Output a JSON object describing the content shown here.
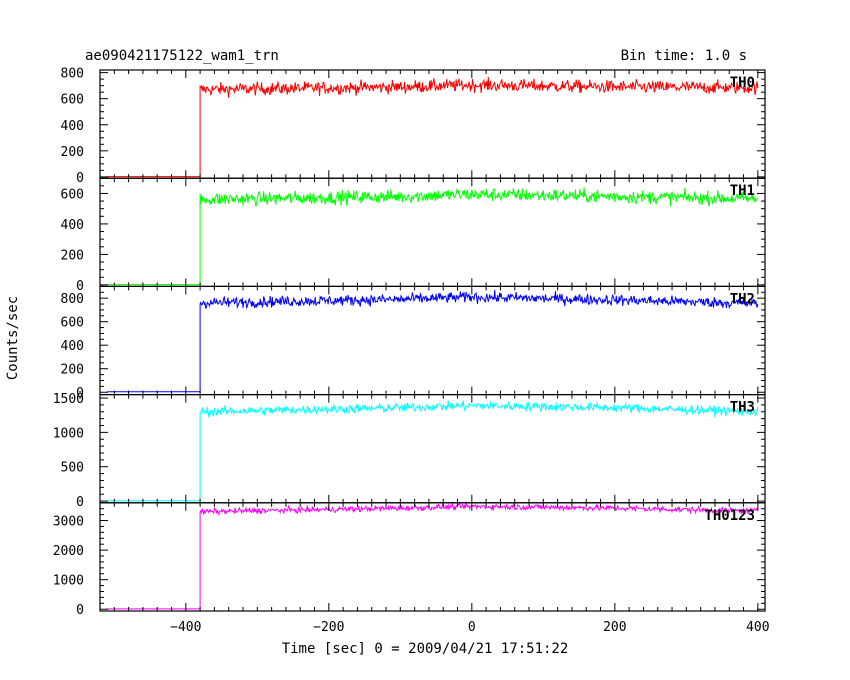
{
  "header": {
    "title": "ae090421175122_wam1_trn",
    "bin_time": "Bin time: 1.0 s"
  },
  "chart_data": {
    "type": "line",
    "title": "ae090421175122_wam1_trn",
    "xlabel": "Time [sec] 0 = 2009/04/21 17:51:22",
    "ylabel": "Counts/sec",
    "xlim": [
      -520,
      410
    ],
    "x_ticks": [
      -400,
      -200,
      0,
      200,
      400
    ],
    "x_tick_labels": [
      "−400",
      "−200",
      "0",
      "200",
      "400"
    ],
    "x_minor_step": 20,
    "step_time": -380,
    "panels": [
      {
        "name": "TH0",
        "color": "#ff0000",
        "ylim": [
          -10,
          820
        ],
        "y_ticks": [
          0,
          200,
          400,
          600,
          800
        ],
        "y_minor_step": 50,
        "pre_level": 2,
        "post_level": 690,
        "noise": 45,
        "trend": [
          [
            -380,
            670
          ],
          [
            -100,
            690
          ],
          [
            0,
            705
          ],
          [
            200,
            690
          ],
          [
            400,
            685
          ]
        ]
      },
      {
        "name": "TH1",
        "color": "#00ff00",
        "ylim": [
          -10,
          700
        ],
        "y_ticks": [
          0,
          200,
          400,
          600
        ],
        "y_minor_step": 50,
        "pre_level": 2,
        "post_level": 570,
        "noise": 40,
        "trend": [
          [
            -380,
            560
          ],
          [
            -100,
            580
          ],
          [
            0,
            595
          ],
          [
            200,
            580
          ],
          [
            400,
            565
          ]
        ]
      },
      {
        "name": "TH2",
        "color": "#0000ff",
        "ylim": [
          -20,
          900
        ],
        "y_ticks": [
          0,
          200,
          400,
          600,
          800
        ],
        "y_minor_step": 50,
        "pre_level": 5,
        "post_level": 780,
        "noise": 42,
        "trend": [
          [
            -380,
            760
          ],
          [
            -100,
            790
          ],
          [
            0,
            810
          ],
          [
            200,
            785
          ],
          [
            400,
            755
          ]
        ]
      },
      {
        "name": "TH3",
        "color": "#00ffff",
        "ylim": [
          -25,
          1550
        ],
        "y_ticks": [
          0,
          500,
          1000,
          1500
        ],
        "y_minor_step": 100,
        "pre_level": 5,
        "post_level": 1340,
        "noise": 60,
        "trend": [
          [
            -380,
            1300
          ],
          [
            -100,
            1360
          ],
          [
            0,
            1390
          ],
          [
            200,
            1360
          ],
          [
            400,
            1300
          ]
        ]
      },
      {
        "name": "TH0123",
        "color": "#ff00ff",
        "ylim": [
          -60,
          3600
        ],
        "y_ticks": [
          0,
          1000,
          2000,
          3000
        ],
        "y_minor_step": 200,
        "pre_level": 10,
        "post_level": 3380,
        "noise": 90,
        "trend": [
          [
            -380,
            3300
          ],
          [
            -100,
            3420
          ],
          [
            0,
            3480
          ],
          [
            200,
            3420
          ],
          [
            400,
            3320
          ]
        ]
      }
    ]
  }
}
